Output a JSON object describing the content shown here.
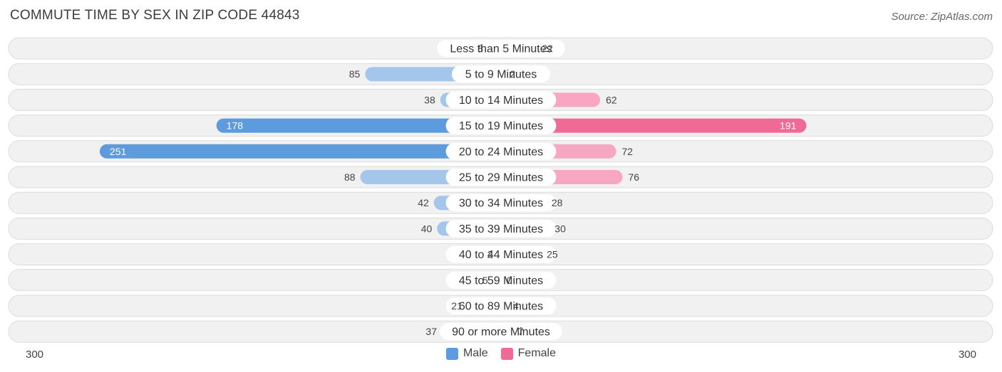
{
  "header": {
    "title": "COMMUTE TIME BY SEX IN ZIP CODE 44843",
    "source": "Source: ZipAtlas.com"
  },
  "axis": {
    "left_label": "300",
    "right_label": "300"
  },
  "legend": {
    "male_label": "Male",
    "female_label": "Female"
  },
  "colors": {
    "male_light": "#a4c6ea",
    "male_strong": "#5b9bde",
    "female_light": "#f7a7c1",
    "female_strong": "#f06a96",
    "row_bg": "#f1f1f1",
    "row_border": "#dcdcdc"
  },
  "chart_data": {
    "type": "bar",
    "orientation": "horizontal-diverging",
    "xlim": [
      -300,
      300
    ],
    "categories": [
      "Less than 5 Minutes",
      "5 to 9 Minutes",
      "10 to 14 Minutes",
      "15 to 19 Minutes",
      "20 to 24 Minutes",
      "25 to 29 Minutes",
      "30 to 34 Minutes",
      "35 to 39 Minutes",
      "40 to 44 Minutes",
      "45 to 59 Minutes",
      "60 to 89 Minutes",
      "90 or more Minutes"
    ],
    "series": [
      {
        "name": "Male",
        "values": [
          8,
          85,
          38,
          178,
          251,
          88,
          42,
          40,
          2,
          5,
          21,
          37
        ]
      },
      {
        "name": "Female",
        "values": [
          22,
          2,
          62,
          191,
          72,
          76,
          28,
          30,
          25,
          0,
          4,
          7
        ]
      }
    ],
    "legend_position": "bottom-center"
  }
}
